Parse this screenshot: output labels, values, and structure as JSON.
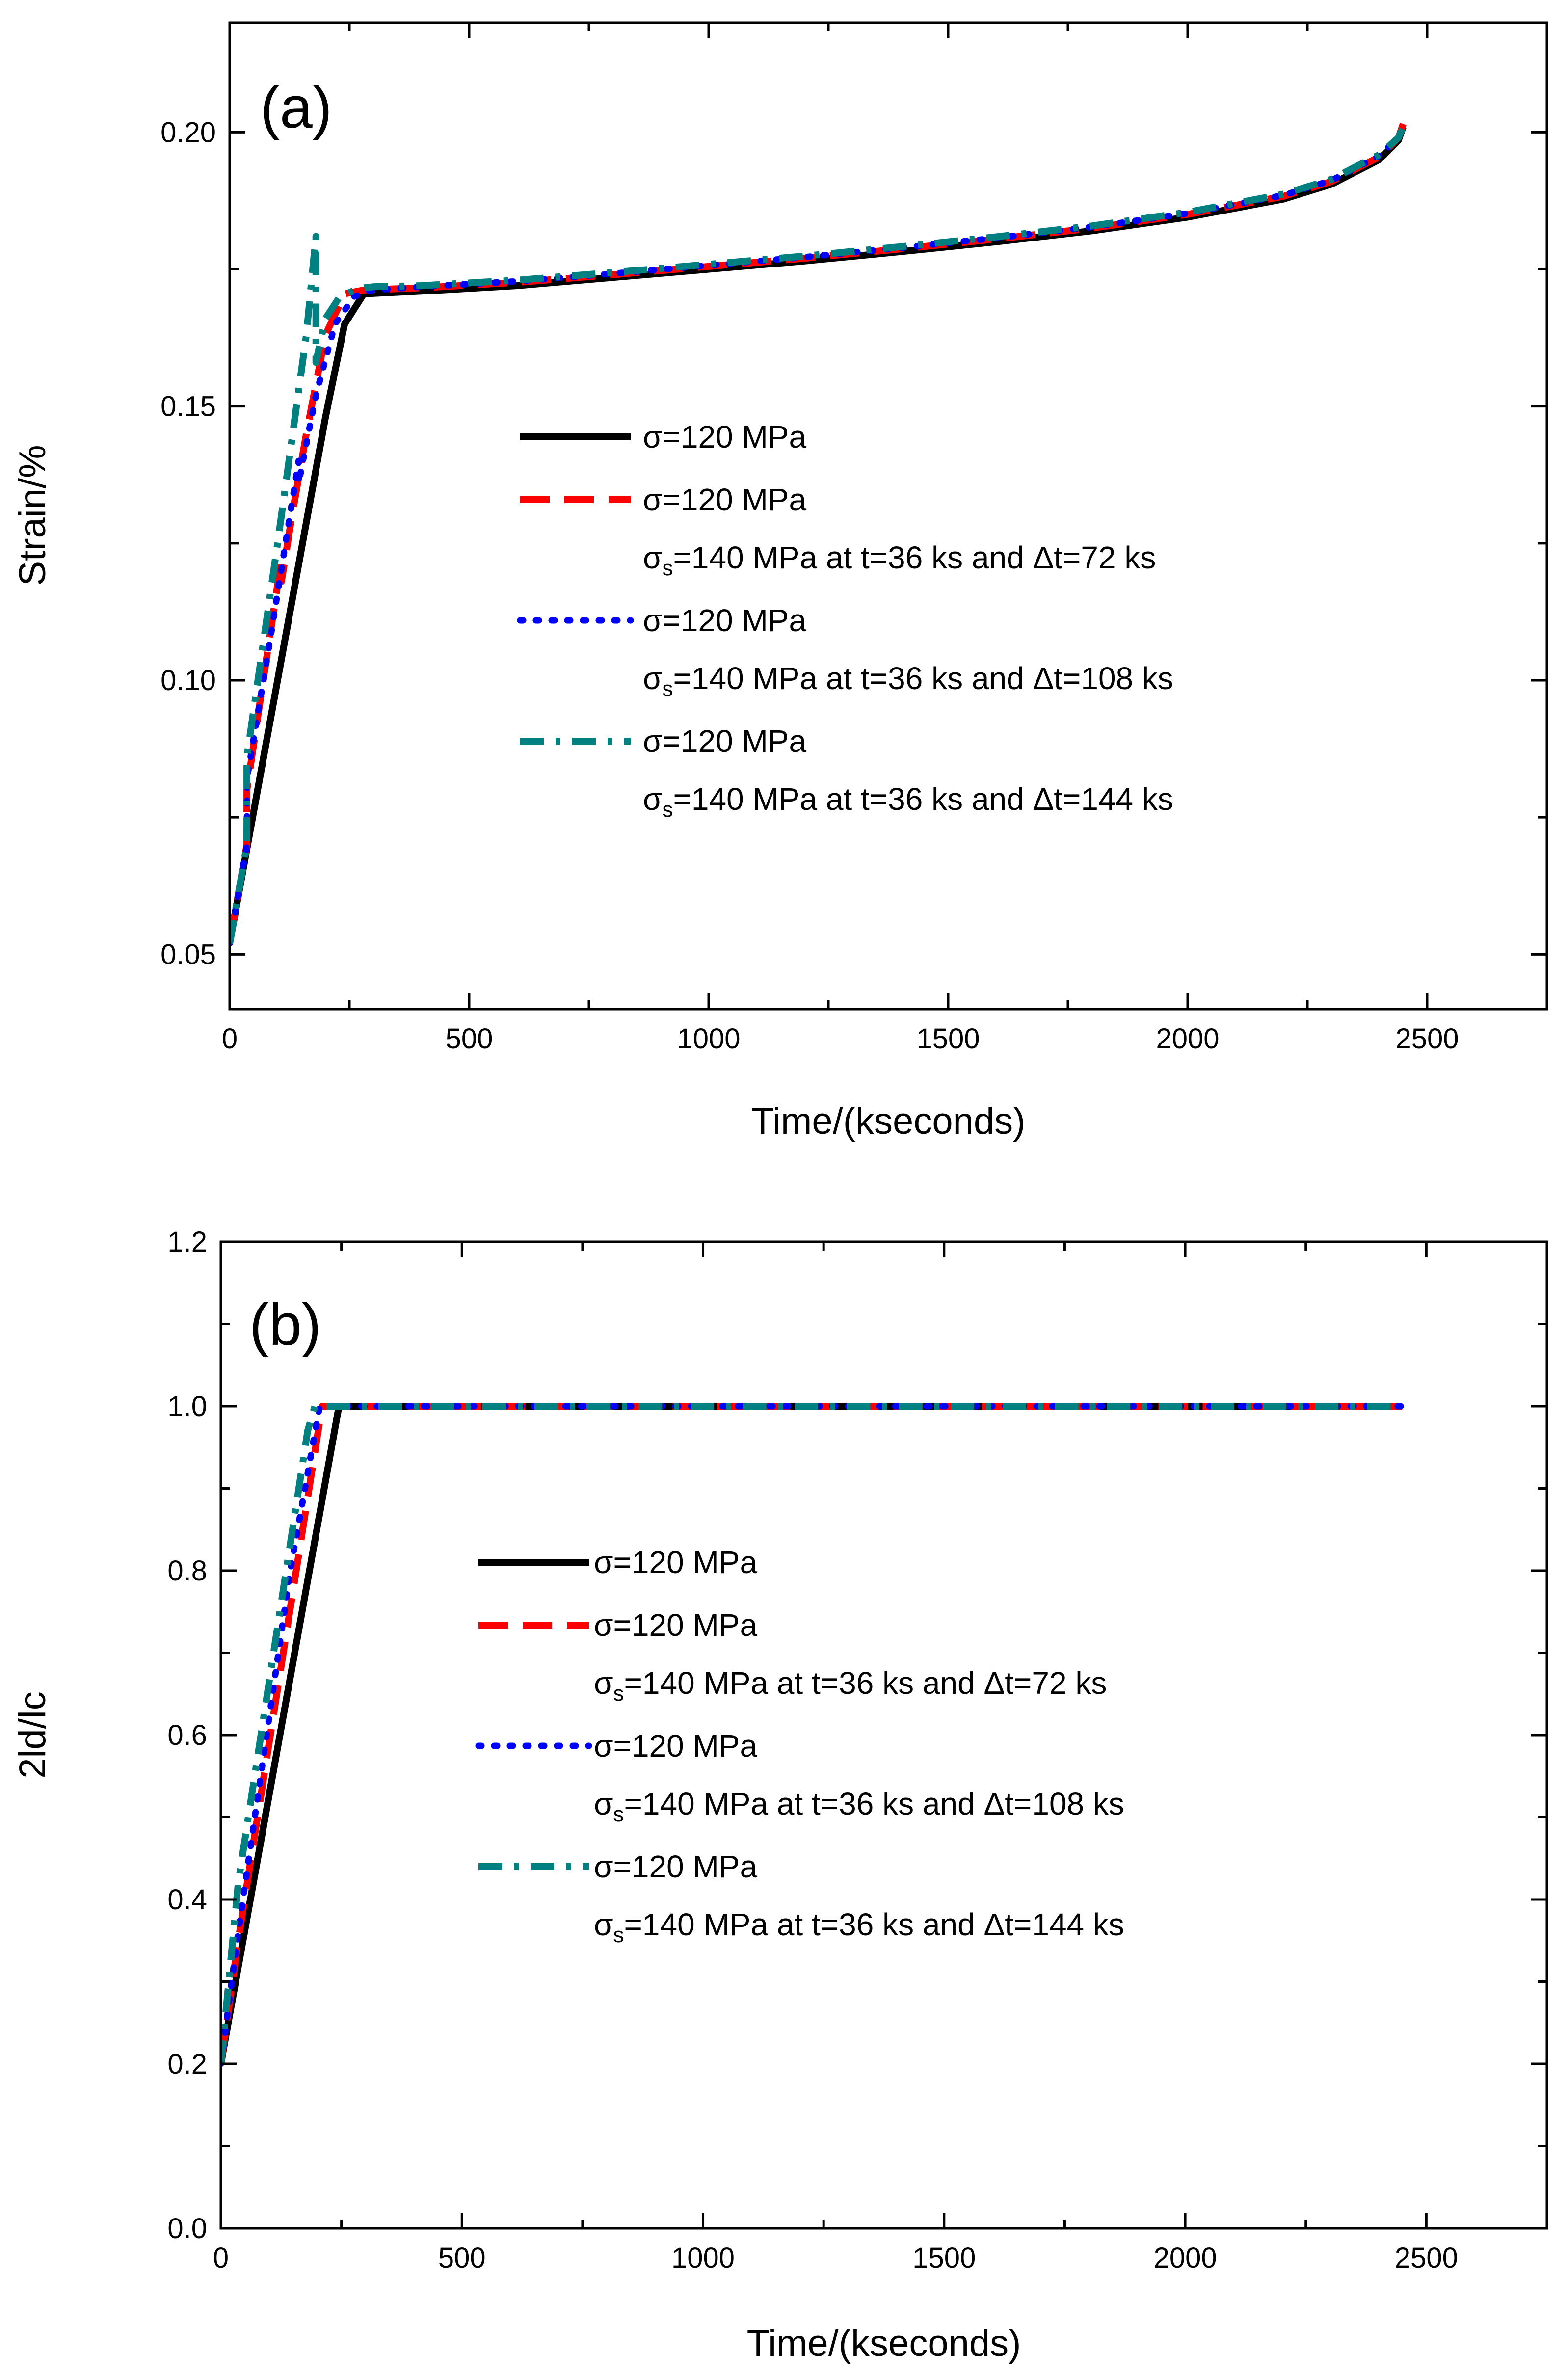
{
  "chart_data": [
    {
      "type": "line",
      "panel_label": "(a)",
      "xlabel": "Time/(kseconds)",
      "ylabel": "Strain/%",
      "xlim": [
        0,
        2750
      ],
      "ylim": [
        0.04,
        0.22
      ],
      "xticks": [
        0,
        500,
        1000,
        1500,
        2000,
        2500
      ],
      "xtick_labels": [
        "0",
        "500",
        "1000",
        "1500",
        "2000",
        "2500"
      ],
      "yticks": [
        0.05,
        0.1,
        0.15,
        0.2
      ],
      "ytick_labels": [
        "0.05",
        "0.10",
        "0.15",
        "0.20"
      ],
      "grid": false,
      "legend_position": "center-right",
      "legend": [
        {
          "line1": "σ=120 MPa",
          "line2": null
        },
        {
          "line1": "σ=120 MPa",
          "line2": {
            "pre": "σ",
            "sub": "s",
            "post": "=140 MPa at t=36 ks and Δt=72 ks"
          }
        },
        {
          "line1": "σ=120 MPa",
          "line2": {
            "pre": "σ",
            "sub": "s",
            "post": "=140 MPa at t=36 ks and Δt=108 ks"
          }
        },
        {
          "line1": "σ=120 MPa",
          "line2": {
            "pre": "σ",
            "sub": "s",
            "post": "=140 MPa at t=36 ks and Δt=144 ks"
          }
        }
      ],
      "series": [
        {
          "color": "#000000",
          "style": "solid",
          "x": [
            0,
            50,
            100,
            150,
            200,
            240,
            280,
            400,
            600,
            800,
            1000,
            1200,
            1400,
            1600,
            1800,
            2000,
            2200,
            2300,
            2400,
            2440,
            2450
          ],
          "y": [
            0.052,
            0.076,
            0.1,
            0.124,
            0.148,
            0.165,
            0.1705,
            0.171,
            0.172,
            0.1735,
            0.175,
            0.1765,
            0.1782,
            0.18,
            0.182,
            0.1845,
            0.1878,
            0.1905,
            0.195,
            0.1985,
            0.201
          ]
        },
        {
          "color": "#ff0000",
          "style": "dash",
          "x": [
            0,
            36,
            36,
            70,
            108,
            108,
            130,
            160,
            200,
            240,
            280,
            400,
            600,
            800,
            1000,
            1200,
            1400,
            1600,
            1800,
            2000,
            2200,
            2300,
            2400,
            2440,
            2450
          ],
          "y": [
            0.052,
            0.07,
            0.08,
            0.1,
            0.122,
            0.118,
            0.13,
            0.145,
            0.163,
            0.1705,
            0.1712,
            0.1716,
            0.1726,
            0.174,
            0.1755,
            0.177,
            0.1787,
            0.1805,
            0.1825,
            0.185,
            0.1883,
            0.191,
            0.1955,
            0.199,
            0.2015
          ]
        },
        {
          "color": "#0000ff",
          "style": "dot",
          "x": [
            0,
            36,
            36,
            80,
            144,
            144,
            180,
            220,
            260,
            300,
            400,
            600,
            800,
            1000,
            1200,
            1400,
            1600,
            1800,
            2000,
            2200,
            2300,
            2400,
            2440,
            2450
          ],
          "y": [
            0.052,
            0.07,
            0.082,
            0.105,
            0.14,
            0.136,
            0.152,
            0.165,
            0.17,
            0.1712,
            0.1718,
            0.1728,
            0.1742,
            0.1757,
            0.1772,
            0.1789,
            0.1807,
            0.1827,
            0.1852,
            0.1885,
            0.1912,
            0.1957,
            0.199,
            0.2012
          ]
        },
        {
          "color": "#008080",
          "style": "dashdot",
          "x": [
            0,
            36,
            36,
            100,
            160,
            180,
            180,
            200,
            230,
            270,
            300,
            400,
            600,
            800,
            1000,
            1200,
            1400,
            1600,
            1800,
            2000,
            2200,
            2300,
            2400,
            2440,
            2450
          ],
          "y": [
            0.052,
            0.07,
            0.086,
            0.125,
            0.163,
            0.181,
            0.158,
            0.166,
            0.17,
            0.1715,
            0.1718,
            0.172,
            0.173,
            0.1744,
            0.1759,
            0.1774,
            0.1791,
            0.1809,
            0.1829,
            0.1854,
            0.1887,
            0.1914,
            0.1959,
            0.199,
            0.201
          ]
        }
      ]
    },
    {
      "type": "line",
      "panel_label": "(b)",
      "xlabel": "Time/(kseconds)",
      "ylabel": "2ld/lc",
      "xlim": [
        0,
        2750
      ],
      "ylim": [
        0.0,
        1.2
      ],
      "xticks": [
        0,
        500,
        1000,
        1500,
        2000,
        2500
      ],
      "xtick_labels": [
        "0",
        "500",
        "1000",
        "1500",
        "2000",
        "2500"
      ],
      "yticks": [
        0.0,
        0.2,
        0.4,
        0.6,
        0.8,
        1.0,
        1.2
      ],
      "ytick_labels": [
        "0.0",
        "0.2",
        "0.4",
        "0.6",
        "0.8",
        "1.0",
        "1.2"
      ],
      "grid": false,
      "legend_position": "center",
      "legend": [
        {
          "line1": "σ=120 MPa",
          "line2": null
        },
        {
          "line1": "σ=120 MPa",
          "line2": {
            "pre": "σ",
            "sub": "s",
            "post": "=140 MPa at t=36 ks and Δt=72 ks"
          }
        },
        {
          "line1": "σ=120 MPa",
          "line2": {
            "pre": "σ",
            "sub": "s",
            "post": "=140 MPa at t=36 ks and Δt=108 ks"
          }
        },
        {
          "line1": "σ=120 MPa",
          "line2": {
            "pre": "σ",
            "sub": "s",
            "post": "=140 MPa at t=36 ks and Δt=144 ks"
          }
        }
      ],
      "series": [
        {
          "color": "#000000",
          "style": "solid",
          "x": [
            0,
            245,
            2450
          ],
          "y": [
            0.2,
            1.0,
            1.0
          ]
        },
        {
          "color": "#ff0000",
          "style": "dash",
          "x": [
            0,
            36,
            108,
            210,
            2450
          ],
          "y": [
            0.2,
            0.35,
            0.62,
            1.0,
            1.0
          ]
        },
        {
          "color": "#0000ff",
          "style": "dot",
          "x": [
            0,
            36,
            144,
            205,
            2450
          ],
          "y": [
            0.2,
            0.36,
            0.8,
            1.0,
            1.0
          ]
        },
        {
          "color": "#008080",
          "style": "dashdot",
          "x": [
            0,
            36,
            180,
            195,
            2450
          ],
          "y": [
            0.2,
            0.42,
            0.97,
            1.0,
            1.0
          ]
        }
      ]
    }
  ]
}
